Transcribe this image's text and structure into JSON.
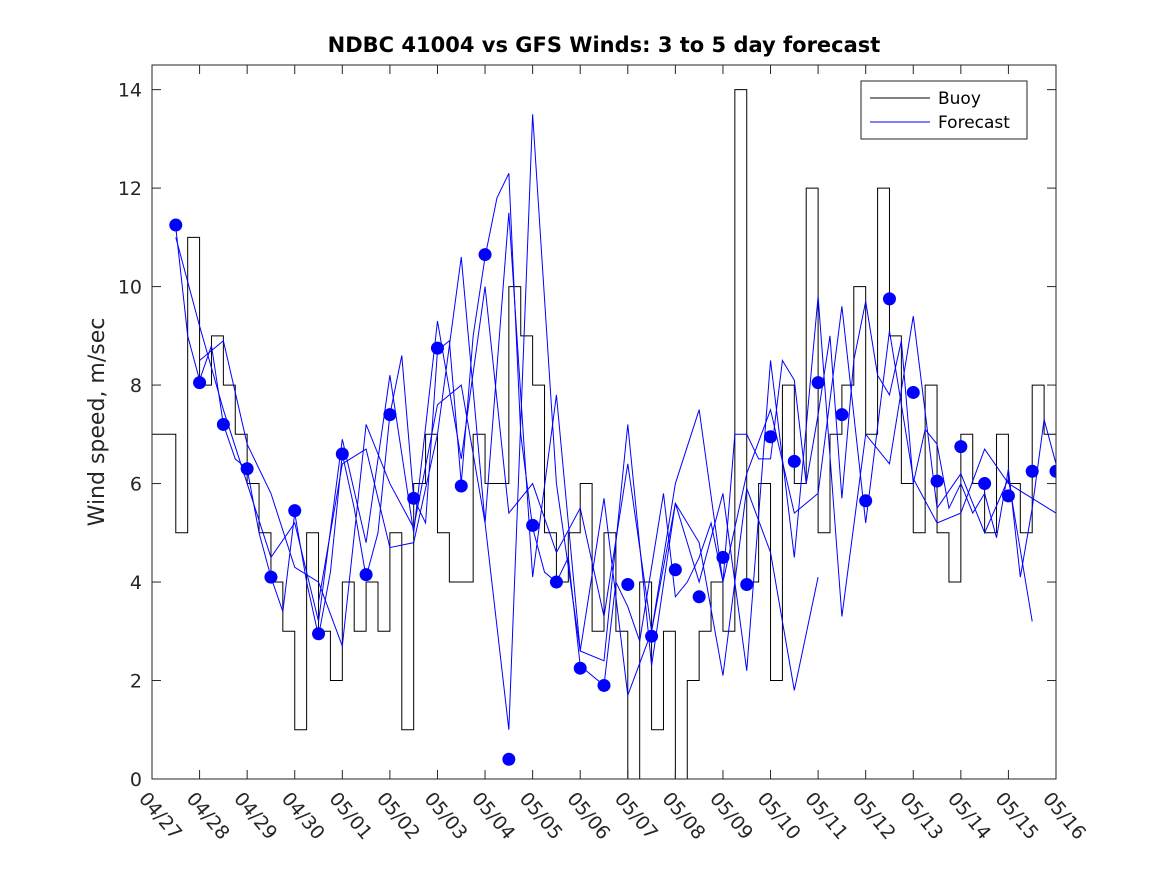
{
  "chart_data": {
    "type": "line",
    "title": "NDBC 41004 vs GFS Winds: 3 to 5 day forecast",
    "xlabel": "",
    "ylabel": "Wind speed, m/sec",
    "xlim": [
      0,
      19
    ],
    "ylim": [
      0,
      14.5
    ],
    "x_tick_labels": [
      "04/27",
      "04/28",
      "04/29",
      "04/30",
      "05/01",
      "05/02",
      "05/03",
      "05/04",
      "05/05",
      "05/06",
      "05/07",
      "05/08",
      "05/09",
      "05/10",
      "05/11",
      "05/12",
      "05/13",
      "05/14",
      "05/15",
      "05/16"
    ],
    "y_ticks": [
      0,
      2,
      4,
      6,
      8,
      10,
      12,
      14
    ],
    "legend": {
      "position": "top-right",
      "entries": [
        "Buoy",
        "Forecast"
      ]
    },
    "colors": {
      "buoy": "#000000",
      "forecast": "#0000ff",
      "axis": "#262626"
    },
    "series": [
      {
        "name": "Buoy",
        "x": [
          0.0,
          0.5,
          0.75,
          1.0,
          1.25,
          1.5,
          1.75,
          2.0,
          2.25,
          2.5,
          2.75,
          3.0,
          3.25,
          3.5,
          3.75,
          4.0,
          4.25,
          4.5,
          4.75,
          5.0,
          5.25,
          5.5,
          5.75,
          6.0,
          6.25,
          6.5,
          6.75,
          7.0,
          7.25,
          7.5,
          7.75,
          8.0,
          8.25,
          8.5,
          8.75,
          9.0,
          9.25,
          9.5,
          9.75,
          10.0,
          10.25,
          10.5,
          10.75,
          11.0,
          11.25,
          11.5,
          11.75,
          12.0,
          12.25,
          12.5,
          12.75,
          13.0,
          13.25,
          13.5,
          13.75,
          14.0,
          14.25,
          14.5,
          14.75,
          15.0,
          15.25,
          15.5,
          15.75,
          16.0,
          16.25,
          16.5,
          16.75,
          17.0,
          17.25,
          17.5,
          17.75,
          18.0,
          18.25,
          18.5,
          18.75,
          19.0
        ],
        "values": [
          7,
          5,
          11,
          8,
          9,
          8,
          7,
          6,
          5,
          4,
          3,
          1,
          5,
          3,
          2,
          4,
          3,
          4,
          3,
          5,
          1,
          6,
          7,
          5,
          4,
          4,
          7,
          6,
          6,
          10,
          9,
          8,
          5,
          4,
          5,
          6,
          3,
          5,
          3,
          0,
          4,
          1,
          3,
          0,
          2,
          3,
          4,
          3,
          14,
          4,
          6,
          2,
          8,
          6,
          12,
          5,
          7,
          8,
          10,
          7,
          12,
          9,
          6,
          5,
          8,
          5,
          4,
          7,
          6,
          5,
          7,
          6,
          5,
          8,
          7,
          8
        ]
      },
      {
        "name": "Forecast",
        "x": [
          0.5,
          0.75,
          1.0,
          1.25,
          1.5,
          1.75,
          2.0,
          2.25,
          2.5,
          2.75,
          3.0,
          3.25,
          3.5,
          3.75,
          4.0,
          4.25,
          4.5,
          4.75,
          5.0,
          5.25,
          5.5,
          5.75,
          6.0,
          6.25,
          6.5,
          6.75,
          7.0,
          7.25,
          7.5,
          7.75,
          8.0,
          8.25,
          8.5,
          8.75,
          9.0,
          9.25,
          9.5,
          9.75,
          10.0,
          10.25,
          10.5,
          10.75,
          11.0,
          11.25,
          11.5,
          11.75,
          12.0,
          12.25,
          12.5,
          12.75,
          13.0,
          13.25,
          13.5,
          13.75,
          14.0,
          14.25,
          14.5,
          14.75,
          15.0,
          15.25,
          15.5,
          15.75,
          16.0,
          16.25,
          16.5,
          16.75,
          17.0,
          17.25,
          17.5,
          17.75,
          18.0,
          18.25,
          18.5,
          18.75,
          19.0
        ],
        "values": [
          11.2,
          9,
          8.1,
          8.8,
          7.2,
          6.5,
          6.3,
          5,
          4.1,
          3.4,
          5.4,
          4,
          2.9,
          4.2,
          6.6,
          5.5,
          4.1,
          5,
          7.4,
          8.6,
          5.7,
          5.2,
          8.7,
          8.9,
          6,
          9,
          10.6,
          11.8,
          12.3,
          7,
          5.1,
          4.2,
          4,
          4.5,
          2.3,
          2.1,
          1.9,
          4,
          3.5,
          2.8,
          4.3,
          5.8,
          3.7,
          4,
          4.5,
          5.2,
          4,
          7,
          7,
          6.5,
          6.5,
          8.5,
          8.1,
          6,
          7.4,
          9,
          5.7,
          8.5,
          9.7,
          8.2,
          7.8,
          8.9,
          6,
          7.1,
          6.8,
          5.5,
          6,
          5.4,
          5.8,
          4.9,
          6.3,
          4.1,
          5.5,
          7.3,
          6.4
        ]
      },
      {
        "name": "Forecast",
        "x": [
          0.5,
          1.0,
          1.5,
          2.0,
          2.5,
          3.0,
          3.5,
          4.0,
          4.5,
          5.0,
          5.5,
          6.0,
          6.5,
          7.0,
          7.5,
          8.0,
          8.5,
          9.0,
          9.5,
          10.0,
          10.5,
          11.0,
          11.5,
          12.0,
          12.5,
          13.0,
          13.5,
          14.0,
          14.5,
          15.0,
          15.5,
          16.0,
          16.5,
          17.0,
          17.5,
          18.0,
          18.5,
          19.0
        ],
        "values": [
          11,
          9.2,
          7.5,
          6,
          4.5,
          5.2,
          3.2,
          6.9,
          4.8,
          8.2,
          5,
          9.3,
          6.5,
          10,
          5.4,
          6,
          4.6,
          5.5,
          3.3,
          6.4,
          3,
          6,
          7.5,
          4,
          6.2,
          7.5,
          5.4,
          5.8,
          9.6,
          5.2,
          9.1,
          6.1,
          5.2,
          5.4,
          6.7,
          6,
          5.7,
          5.4
        ]
      },
      {
        "name": "Forecast",
        "x": [
          1.0,
          1.5,
          2.0,
          2.5,
          3.0,
          3.5,
          4.0,
          4.5,
          5.0,
          5.5,
          6.0,
          6.5,
          7.0,
          7.5,
          8.0,
          8.5,
          9.0,
          9.5,
          10.0,
          10.5,
          11.0,
          11.5,
          12.0,
          12.5,
          13.0,
          13.5,
          14.0,
          14.5,
          15.0,
          15.5,
          16.0,
          16.5,
          17.0,
          17.5,
          18.0,
          18.5
        ],
        "values": [
          8.5,
          8.9,
          6.8,
          5.8,
          4.3,
          4,
          2.7,
          7.2,
          6,
          5.1,
          7.6,
          8,
          5.2,
          11.5,
          4.1,
          7.8,
          2.6,
          2.4,
          7.2,
          2.3,
          5.6,
          4,
          5.8,
          2.2,
          8.5,
          4.5,
          9.8,
          3.3,
          7,
          6.4,
          9.4,
          5.5,
          6.2,
          5,
          6.1,
          3.2
        ]
      },
      {
        "name": "Forecast",
        "x": [
          3.5,
          4.0,
          4.5,
          5.0,
          5.5,
          6.0,
          6.5,
          7.0,
          7.5,
          8.0,
          8.5,
          9.0,
          9.5,
          10.0,
          10.5,
          11.0,
          11.5,
          12.0,
          12.5,
          13.0,
          13.5,
          14.0
        ],
        "values": [
          3.6,
          6.4,
          6.7,
          4.7,
          4.8,
          7,
          10.6,
          5.2,
          1,
          13.5,
          6,
          2.6,
          5.7,
          1.7,
          3,
          5.6,
          4.8,
          2.1,
          5.9,
          4.6,
          1.8,
          4.1
        ]
      }
    ],
    "markers": {
      "name": "Forecast",
      "x": [
        0.5,
        1.0,
        1.5,
        2.0,
        2.5,
        3.0,
        3.5,
        4.0,
        4.5,
        5.0,
        5.5,
        6.0,
        6.5,
        7.0,
        7.5,
        8.0,
        8.5,
        9.0,
        9.5,
        10.0,
        10.5,
        11.0,
        11.5,
        12.0,
        12.5,
        13.0,
        13.5,
        14.0,
        14.5,
        15.0,
        15.5,
        16.0,
        16.5,
        17.0,
        17.5,
        18.0,
        18.5,
        19.0
      ],
      "values": [
        11.25,
        8.05,
        7.2,
        6.3,
        4.1,
        5.45,
        2.95,
        6.6,
        4.15,
        7.4,
        5.7,
        8.75,
        5.95,
        10.65,
        0.4,
        5.15,
        4.0,
        2.25,
        1.9,
        3.95,
        2.9,
        4.25,
        3.7,
        4.5,
        3.95,
        6.95,
        6.45,
        8.05,
        7.4,
        5.65,
        9.75,
        7.85,
        6.05,
        6.75,
        6.0,
        5.75,
        6.25,
        6.25
      ]
    }
  }
}
